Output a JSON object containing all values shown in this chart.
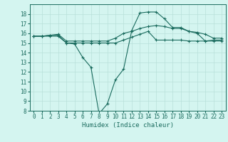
{
  "x_values": [
    0,
    1,
    2,
    3,
    4,
    5,
    6,
    7,
    8,
    9,
    10,
    11,
    12,
    13,
    14,
    15,
    16,
    17,
    18,
    19,
    20,
    21,
    22,
    23
  ],
  "line1": [
    15.7,
    15.7,
    15.7,
    15.7,
    15.0,
    14.9,
    13.5,
    12.5,
    7.7,
    8.7,
    11.2,
    12.3,
    16.3,
    18.1,
    18.2,
    18.2,
    17.5,
    16.6,
    16.6,
    16.2,
    16.0,
    15.2,
    15.3,
    15.3
  ],
  "line2": [
    15.7,
    15.7,
    15.8,
    15.8,
    15.0,
    15.0,
    15.0,
    15.0,
    15.0,
    15.0,
    15.0,
    15.3,
    15.6,
    15.9,
    16.2,
    15.3,
    15.3,
    15.3,
    15.3,
    15.2,
    15.2,
    15.2,
    15.2,
    15.2
  ],
  "line3": [
    15.7,
    15.7,
    15.8,
    15.9,
    15.2,
    15.2,
    15.2,
    15.2,
    15.2,
    15.2,
    15.5,
    16.0,
    16.2,
    16.5,
    16.7,
    16.8,
    16.7,
    16.5,
    16.5,
    16.2,
    16.1,
    15.9,
    15.5,
    15.5
  ],
  "line_color": "#1a6b5e",
  "bg_color": "#d4f5f0",
  "grid_color": "#b8e0da",
  "xlabel": "Humidex (Indice chaleur)",
  "ylim": [
    8,
    19
  ],
  "xlim": [
    -0.5,
    23.5
  ],
  "yticks": [
    8,
    9,
    10,
    11,
    12,
    13,
    14,
    15,
    16,
    17,
    18
  ],
  "xticks": [
    0,
    1,
    2,
    3,
    4,
    5,
    6,
    7,
    8,
    9,
    10,
    11,
    12,
    13,
    14,
    15,
    16,
    17,
    18,
    19,
    20,
    21,
    22,
    23
  ],
  "xlabel_fontsize": 6.5,
  "tick_fontsize": 5.5
}
